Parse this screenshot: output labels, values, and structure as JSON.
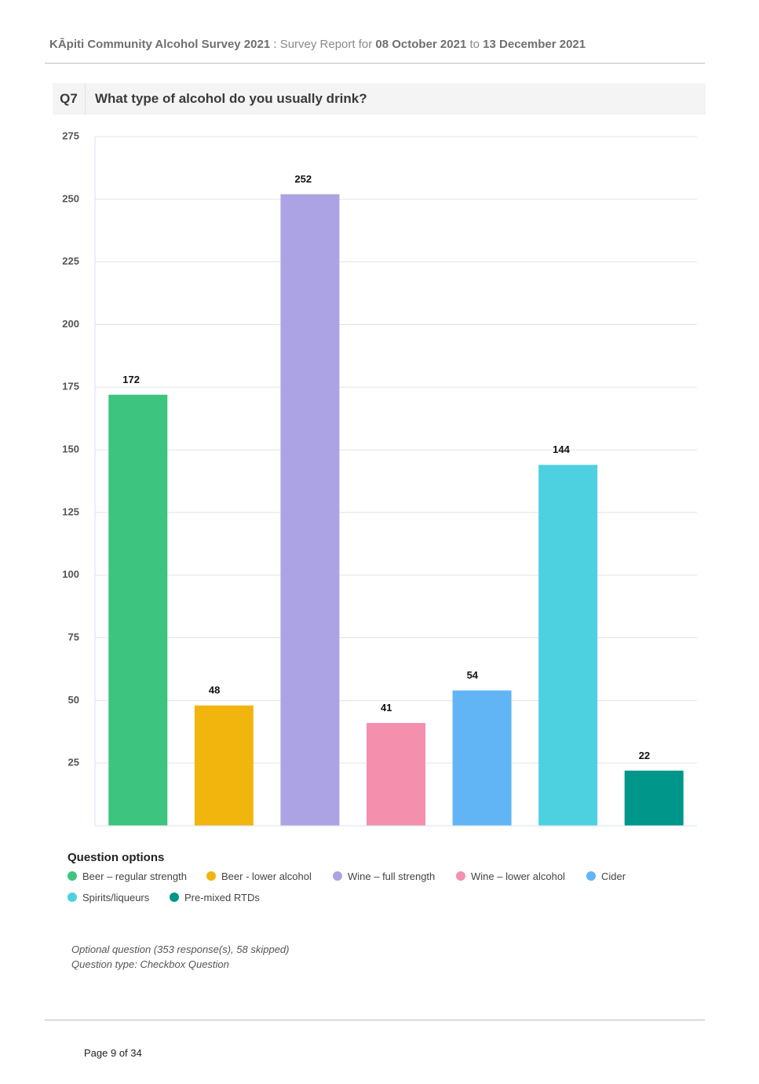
{
  "header": {
    "survey": "KĀpiti Community Alcohol Survey 2021",
    "sep": " : ",
    "report": "Survey Report for ",
    "date_from": "08 October 2021",
    "to": " to ",
    "date_to": "13 December 2021"
  },
  "question": {
    "number": "Q7",
    "text": "What type of alcohol do you usually drink?"
  },
  "chart_data": {
    "type": "bar",
    "title": "",
    "xlabel": "",
    "ylabel": "",
    "ylim": [
      0,
      275
    ],
    "yticks": [
      25,
      50,
      75,
      100,
      125,
      150,
      175,
      200,
      225,
      250,
      275
    ],
    "grid": true,
    "categories": [
      "Beer – regular strength",
      "Beer - lower alcohol",
      "Wine – full strength",
      "Wine – lower alcohol",
      "Cider",
      "Spirits/liqueurs",
      "Pre-mixed RTDs"
    ],
    "values": [
      172,
      48,
      252,
      41,
      54,
      144,
      22
    ],
    "colors": [
      "#3dc47e",
      "#f2b50d",
      "#aba3e3",
      "#f48fae",
      "#62b5f5",
      "#4dd1e0",
      "#00968a"
    ],
    "legend_placement": "bottom"
  },
  "legend": {
    "title": "Question options",
    "items": [
      {
        "label": "Beer – regular strength",
        "color": "#3dc47e"
      },
      {
        "label": "Beer - lower alcohol",
        "color": "#f2b50d"
      },
      {
        "label": "Wine – full strength",
        "color": "#aba3e3"
      },
      {
        "label": "Wine – lower alcohol",
        "color": "#f48fae"
      },
      {
        "label": "Cider",
        "color": "#62b5f5"
      },
      {
        "label": "Spirits/liqueurs",
        "color": "#4dd1e0"
      },
      {
        "label": "Pre-mixed RTDs",
        "color": "#00968a"
      }
    ]
  },
  "notes": {
    "line1": "Optional question (353 response(s), 58 skipped)",
    "line2": "Question type: Checkbox Question"
  },
  "footer": {
    "page": "Page 9 of 34"
  }
}
